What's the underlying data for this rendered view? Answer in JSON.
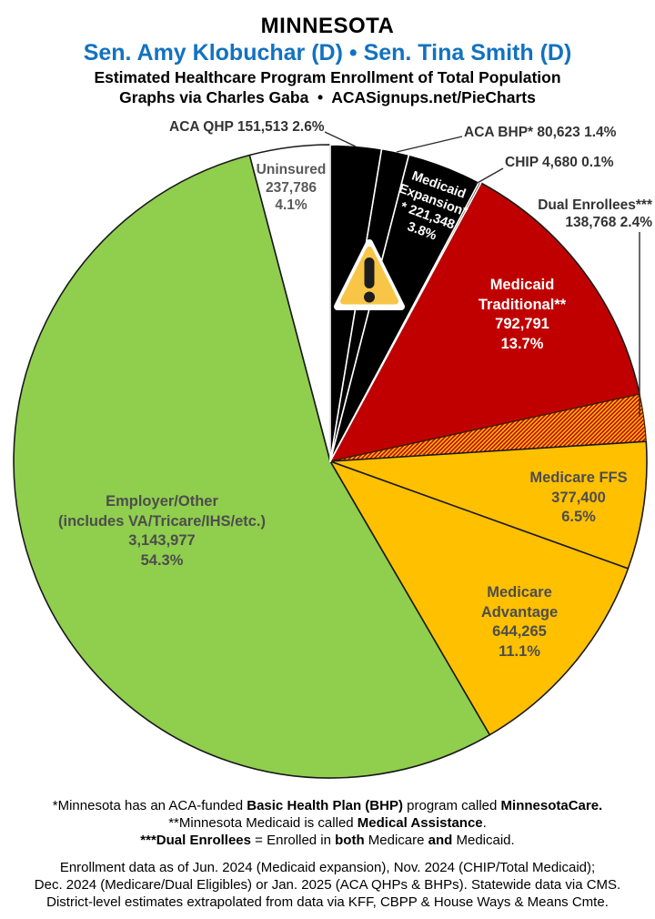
{
  "header": {
    "state": "MINNESOTA",
    "senators": "Sen. Amy Klobuchar (D) • Sen. Tina Smith (D)",
    "senator_color": "#1272c0",
    "subtitle1": "Estimated Healthcare Program Enrollment of Total Population",
    "subtitle2": "Graphs via Charles Gaba  •  ACASignups.net/PieCharts"
  },
  "chart_data": {
    "type": "pie",
    "title": "Minnesota — Estimated Healthcare Program Enrollment of Total Population",
    "direction": "clockwise",
    "start_angle_deg": 0,
    "total_pct": 100.0,
    "hatch_colors": [
      "#c00000",
      "#ffc000"
    ],
    "slices": [
      {
        "label": "ACA QHP",
        "value": 151513,
        "display": "151,513",
        "pct": 2.6,
        "color": "#000000"
      },
      {
        "label": "ACA BHP*",
        "value": 80623,
        "display": "80,623",
        "pct": 1.4,
        "color": "#000000"
      },
      {
        "label": "Medicaid Expansion**",
        "value": 221348,
        "display": "221,348",
        "pct": 3.8,
        "color": "#000000"
      },
      {
        "label": "CHIP",
        "value": 4680,
        "display": "4,680",
        "pct": 0.1,
        "color": "#000000"
      },
      {
        "label": "Medicaid Traditional**",
        "value": 792791,
        "display": "792,791",
        "pct": 13.7,
        "color": "#c00000"
      },
      {
        "label": "Dual Enrollees***",
        "value": 138768,
        "display": "138,768",
        "pct": 2.4,
        "color": "hatch"
      },
      {
        "label": "Medicare FFS",
        "value": 377400,
        "display": "377,400",
        "pct": 6.5,
        "color": "#ffc000"
      },
      {
        "label": "Medicare Advantage",
        "value": 644265,
        "display": "644,265",
        "pct": 11.1,
        "color": "#ffc000"
      },
      {
        "label": "Employer/Other (includes VA/Tricare/IHS/etc.)",
        "value": 3143977,
        "display": "3,143,977",
        "pct": 54.3,
        "color": "#90ce4e"
      },
      {
        "label": "Uninsured",
        "value": 237786,
        "display": "237,786",
        "pct": 4.1,
        "color": "#ffffff"
      }
    ]
  },
  "callouts": {
    "aca_qhp": "ACA QHP 151,513 2.6%",
    "aca_bhp": "ACA BHP* 80,623 1.4%",
    "chip": "CHIP 4,680 0.1%",
    "dual_line1": "Dual Enrollees***",
    "dual_line2": "138,768 2.4%"
  },
  "slice_labels": {
    "uninsured": [
      "Uninsured",
      "237,786",
      "4.1%"
    ],
    "expansion": [
      "Medicaid",
      "Expansion*",
      "* 221,348",
      "3.8%"
    ],
    "traditional": [
      "Medicaid",
      "Traditional**",
      "792,791",
      "13.7%"
    ],
    "ffs": [
      "Medicare FFS",
      "377,400",
      "6.5%"
    ],
    "advantage": [
      "Medicare",
      "Advantage",
      "644,265",
      "11.1%"
    ],
    "employer": [
      "Employer/Other",
      "(includes VA/Tricare/IHS/etc.)",
      "3,143,977",
      "54.3%"
    ]
  },
  "footnotes": {
    "bhp": {
      "pre": "*Minnesota has an ACA-funded ",
      "bold1": "Basic Health Plan (BHP)",
      "mid": " program called ",
      "bold2": "MinnesotaCare."
    },
    "medicaid": {
      "pre": "**Minnesota Medicaid is called ",
      "bold1": "Medical Assistance",
      "post": "."
    },
    "dual": {
      "bold1": "***Dual Enrollees",
      "mid1": " = Enrolled in ",
      "bold2": "both",
      "mid2": " Medicare ",
      "bold3": "and",
      "post": " Medicaid."
    },
    "source1": "Enrollment data as of Jun. 2024 (Medicaid expansion), Nov. 2024 (CHIP/Total Medicaid);",
    "source2": "Dec. 2024 (Medicare/Dual Eligibles) or Jan. 2025 (ACA QHPs & BHPs). Statewide data via CMS.",
    "source3": "District-level estimates extrapolated from data via KFF, CBPP & House Ways & Means Cmte."
  }
}
